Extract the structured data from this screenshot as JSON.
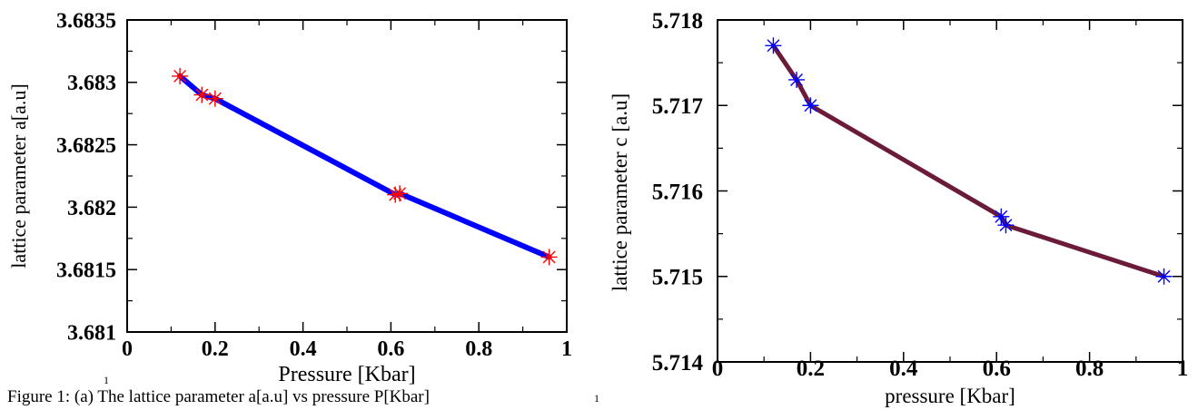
{
  "caption": "Figure 1: (a) The lattice parameter a[a.u] vs pressure P[Kbar]",
  "stray_marks": [
    "1",
    "1"
  ],
  "chart_data": [
    {
      "type": "line",
      "title": "",
      "xlabel": "Pressure [Kbar]",
      "ylabel": "lattice parameter a[a.u]",
      "xlim": [
        0,
        1
      ],
      "ylim": [
        3.681,
        3.6835
      ],
      "xticks": [
        "0",
        "0.2",
        "0.4",
        "0.6",
        "0.8",
        "1"
      ],
      "yticks": [
        "3.681",
        "3.6815",
        "3.682",
        "3.6825",
        "3.683",
        "3.6835"
      ],
      "x": [
        0.12,
        0.17,
        0.2,
        0.61,
        0.62,
        0.96
      ],
      "y": [
        3.68305,
        3.6829,
        3.68287,
        3.6821,
        3.68211,
        3.6816
      ],
      "line_color": "#0000ff",
      "marker_color": "#ff0000",
      "marker": "asterisk",
      "grid": false
    },
    {
      "type": "line",
      "title": "",
      "xlabel": "pressure [Kbar]",
      "ylabel": "lattice parameter c [a.u]",
      "xlim": [
        0,
        1
      ],
      "ylim": [
        5.714,
        5.718
      ],
      "xticks": [
        "0",
        "0.2",
        "0.4",
        "0.6",
        "0.8",
        "1"
      ],
      "yticks": [
        "5.714",
        "5.715",
        "5.716",
        "5.717",
        "5.718"
      ],
      "x": [
        0.12,
        0.17,
        0.2,
        0.61,
        0.62,
        0.96
      ],
      "y": [
        5.7177,
        5.7173,
        5.717,
        5.7157,
        5.7156,
        5.715
      ],
      "line_color": "#6b1a3a",
      "marker_color": "#0000ff",
      "marker": "asterisk",
      "grid": false
    }
  ]
}
